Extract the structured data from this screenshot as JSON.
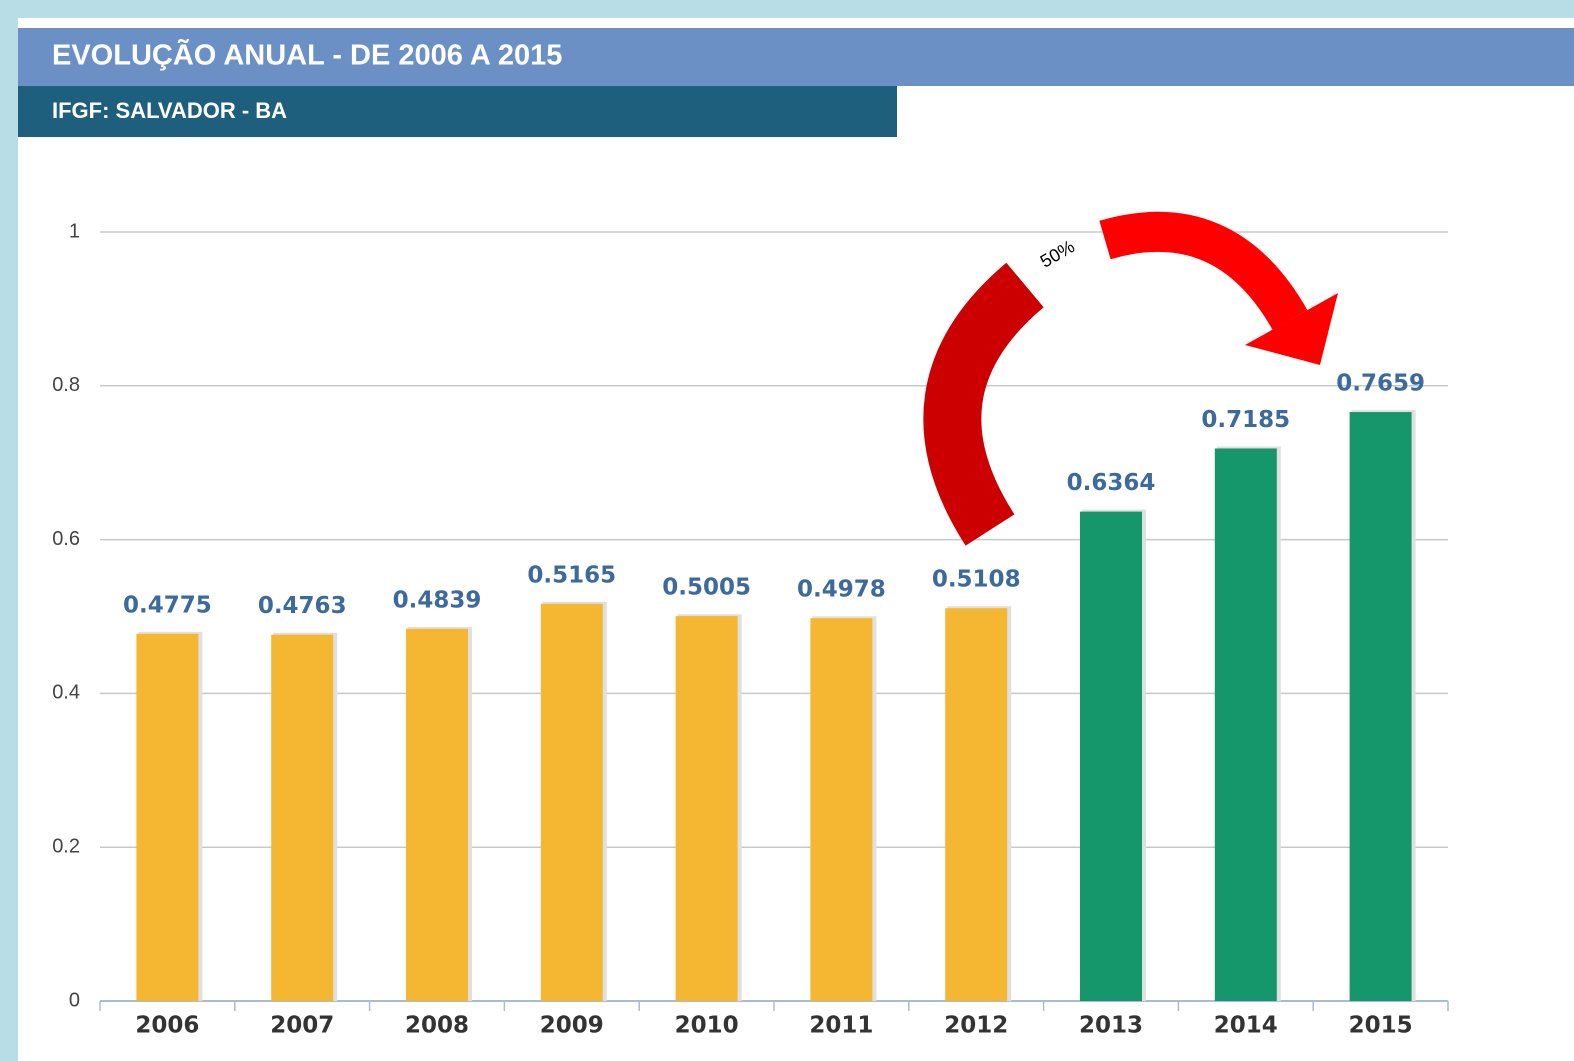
{
  "chart_data": {
    "type": "bar",
    "title": "EVOLUÇÃO ANUAL - DE 2006 A 2015",
    "subtitle": "IFGF: SALVADOR - BA",
    "annotation": "50%",
    "categories": [
      "2006",
      "2007",
      "2008",
      "2009",
      "2010",
      "2011",
      "2012",
      "2013",
      "2014",
      "2015"
    ],
    "values": [
      0.4775,
      0.4763,
      0.4839,
      0.5165,
      0.5005,
      0.4978,
      0.5108,
      0.6364,
      0.7185,
      0.7659
    ],
    "colors": [
      "#f5b731",
      "#f5b731",
      "#f5b731",
      "#f5b731",
      "#f5b731",
      "#f5b731",
      "#f5b731",
      "#16976b",
      "#16976b",
      "#16976b"
    ],
    "ylim": [
      0,
      1
    ],
    "yticks": [
      0,
      0.2,
      0.4,
      0.6,
      0.8,
      1
    ],
    "grid": true
  }
}
